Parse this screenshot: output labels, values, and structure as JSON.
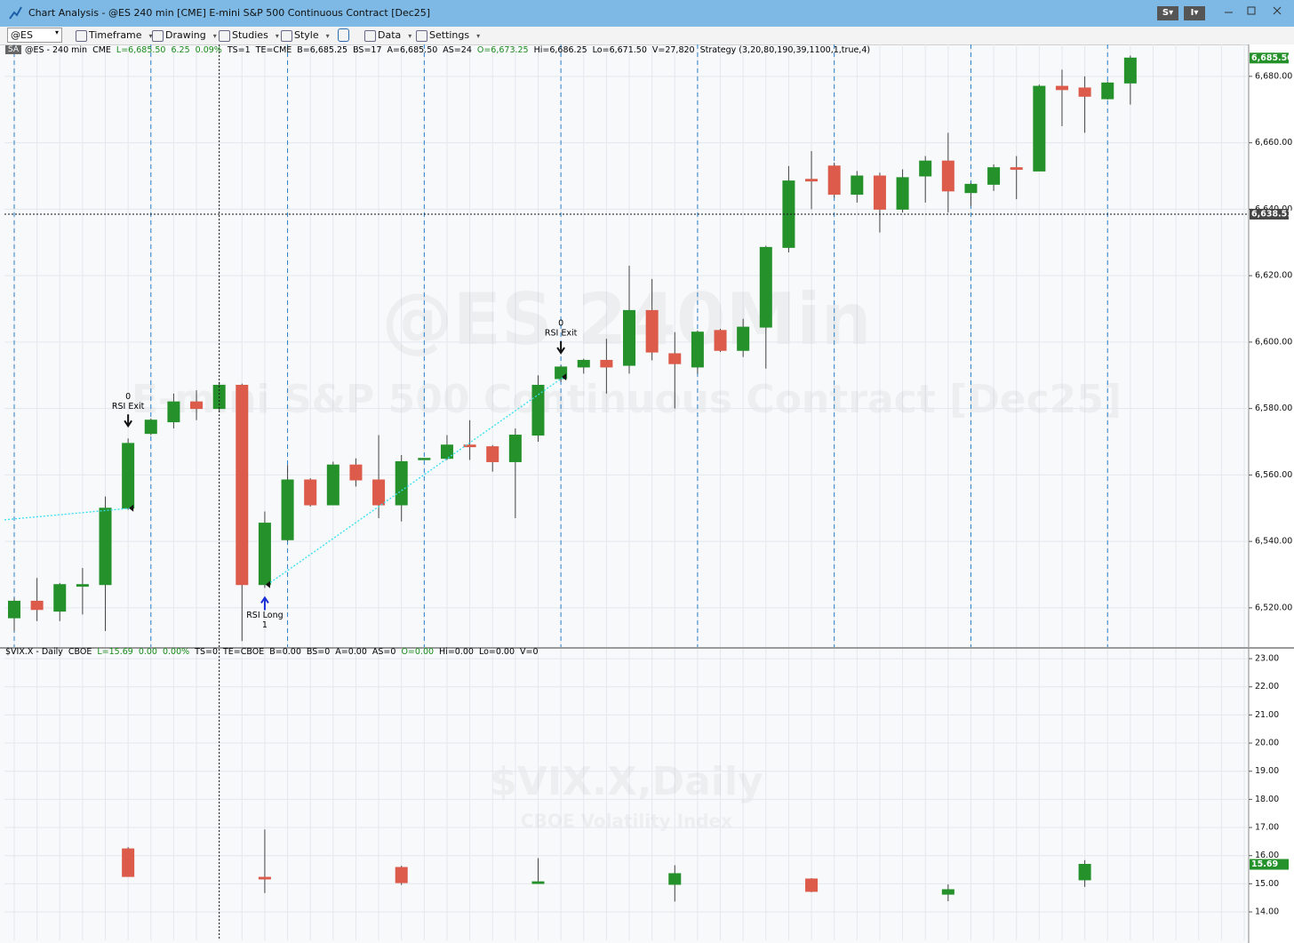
{
  "window": {
    "title": "Chart Analysis - @ES 240 min [CME] E-mini S&P 500 Continuous Contract [Dec25]",
    "buttons": [
      "S",
      "I"
    ]
  },
  "toolbar": {
    "symbol": "@ES",
    "items": [
      "Timeframe",
      "Drawing",
      "Studies",
      "Style",
      "Data",
      "Settings"
    ]
  },
  "chart_data": [
    {
      "type": "candlestick",
      "badge": "SA",
      "info": [
        {
          "text": "@ES - 240 min"
        },
        {
          "text": "CME"
        },
        {
          "text": "L=6,685.50",
          "color": "#1a8a1a"
        },
        {
          "text": "6.25",
          "color": "#1a8a1a"
        },
        {
          "text": "0.09%",
          "color": "#1a8a1a"
        },
        {
          "text": "TS=1"
        },
        {
          "text": "TE=CME"
        },
        {
          "text": "B=6,685.25"
        },
        {
          "text": "BS=17"
        },
        {
          "text": "A=6,685.50"
        },
        {
          "text": "AS=24"
        },
        {
          "text": "O=6,673.25",
          "color": "#1a8a1a"
        },
        {
          "text": "Hi=6,686.25"
        },
        {
          "text": "Lo=6,671.50"
        },
        {
          "text": "V=27,820"
        },
        {
          "text": "Strategy (3,20,80,190,39,1100,1,true,4)"
        }
      ],
      "watermark": "@ES 240Min",
      "watermark_subtitle": "E-mini S&P 500 Continuous Contract [Dec25]",
      "up_color": "#24912b",
      "down_color": "#dc5b4a",
      "open": [
        6517,
        6522,
        6519,
        6526.5,
        6527,
        6550,
        6572.5,
        6576,
        6582,
        6580,
        6587,
        6527,
        6540.5,
        6558.5,
        6551,
        6563,
        6558.5,
        6551,
        6564.75,
        6565,
        6569,
        6568.5,
        6564,
        6572,
        6589,
        6592.5,
        6594.5,
        6593,
        6609.5,
        6596.5,
        6592.5,
        6603.5,
        6597.5,
        6604.5,
        6628.5,
        6649,
        6653,
        6644.5,
        6650,
        6640,
        6650,
        6654.5,
        6645,
        6647.5,
        6652.5,
        6651.5,
        6677,
        6676.5,
        6673.25,
        6678
      ],
      "high": [
        6523,
        6529,
        6527.5,
        6532,
        6553.5,
        6571,
        6577,
        6584.5,
        6585.5,
        6588,
        6587.5,
        6549,
        6563,
        6559,
        6564,
        6565,
        6572,
        6566,
        6565,
        6572,
        6576.5,
        6569,
        6574,
        6590,
        6593,
        6595,
        6601,
        6623,
        6619,
        6603,
        6603.5,
        6604,
        6607,
        6629,
        6653,
        6657.5,
        6654,
        6651.5,
        6651,
        6652,
        6656,
        6663,
        6648,
        6653.5,
        6656,
        6677.5,
        6682,
        6680,
        6678.5,
        6686.25
      ],
      "low": [
        6513,
        6516,
        6516,
        6518,
        6513,
        6549.5,
        6572,
        6574,
        6576.5,
        6579,
        6510,
        6526,
        6540,
        6550.5,
        6551,
        6556.5,
        6547,
        6546,
        6564.5,
        6564.5,
        6564.5,
        6561,
        6547,
        6570,
        6588,
        6590.5,
        6584.5,
        6590.5,
        6594.5,
        6580,
        6590.5,
        6597,
        6595.5,
        6592,
        6627,
        6640,
        6643.5,
        6642,
        6633,
        6639,
        6642,
        6639,
        6641,
        6645.5,
        6643,
        6651.5,
        6665,
        6663,
        6673,
        6671.5
      ],
      "close": [
        6522,
        6519.5,
        6527,
        6527,
        6550,
        6569.5,
        6576.5,
        6582,
        6580,
        6587,
        6527,
        6545.5,
        6558.5,
        6551,
        6563,
        6558.5,
        6551,
        6564,
        6565,
        6569,
        6568.5,
        6564,
        6572,
        6587,
        6592.5,
        6594.5,
        6592.5,
        6609.5,
        6597,
        6593.5,
        6603,
        6597.5,
        6604.5,
        6628.5,
        6648.5,
        6648.5,
        6644.5,
        6650,
        6640,
        6649.5,
        6654.5,
        6645.5,
        6647.5,
        6652.5,
        6652,
        6677,
        6676,
        6674,
        6678,
        6685.5
      ],
      "ylim": [
        6508.2,
        6689.6
      ],
      "yticks": [
        {
          "value": 6520,
          "label": "6,520.00"
        },
        {
          "value": 6540,
          "label": "6,540.00"
        },
        {
          "value": 6560,
          "label": "6,560.00"
        },
        {
          "value": 6580,
          "label": "6,580.00"
        },
        {
          "value": 6600,
          "label": "6,600.00"
        },
        {
          "value": 6620,
          "label": "6,620.00"
        },
        {
          "value": 6640,
          "label": "6,640.00"
        },
        {
          "value": 6660,
          "label": "6,660.00"
        },
        {
          "value": 6680,
          "label": "6,680.00"
        }
      ],
      "grid": true,
      "last_price": {
        "value": 6685.5,
        "label": "6,685.50"
      },
      "crosshair": {
        "value": 6638.51,
        "label": "6,638.51"
      },
      "signals": [
        {
          "kind": "exit",
          "qty": 0,
          "label": "RSI Exit",
          "price": 6550
        },
        {
          "kind": "long",
          "qty": 1,
          "label": "RSI Long",
          "price": 6527
        },
        {
          "kind": "exit",
          "qty": 0,
          "label": "RSI Exit",
          "price": 6589.5
        }
      ],
      "trade_lines": [
        [
          6546.5,
          6550
        ],
        [
          6527,
          6589.5
        ]
      ]
    },
    {
      "type": "candlestick",
      "info": [
        {
          "text": "$VIX.X - Daily"
        },
        {
          "text": "CBOE"
        },
        {
          "text": "L=15.69",
          "color": "#1a8a1a"
        },
        {
          "text": "0.00",
          "color": "#1a8a1a"
        },
        {
          "text": "0.00%",
          "color": "#1a8a1a"
        },
        {
          "text": "TS=0"
        },
        {
          "text": "TE=CBOE"
        },
        {
          "text": "B=0.00"
        },
        {
          "text": "BS=0"
        },
        {
          "text": "A=0.00"
        },
        {
          "text": "AS=0"
        },
        {
          "text": "O=0.00",
          "color": "#1a8a1a"
        },
        {
          "text": "Hi=0.00"
        },
        {
          "text": "Lo=0.00"
        },
        {
          "text": "V=0"
        }
      ],
      "watermark": "$VIX.X,Daily",
      "watermark_subtitle": "CBOE Volatility Index",
      "up_color": "#24912b",
      "down_color": "#dc5b4a",
      "open": [
        16.24,
        15.23,
        15.58,
        15.01,
        14.98,
        15.17,
        14.63,
        15.14
      ],
      "high": [
        16.3,
        16.93,
        15.64,
        15.91,
        15.66,
        15.2,
        14.98,
        15.84
      ],
      "low": [
        15.26,
        14.67,
        14.96,
        15.0,
        14.37,
        14.7,
        14.38,
        14.89
      ],
      "close": [
        15.26,
        15.17,
        15.04,
        15.07,
        15.36,
        14.73,
        14.79,
        15.69
      ],
      "ylim": [
        12.99,
        23.35
      ],
      "yticks": [
        {
          "value": 14,
          "label": "14.00"
        },
        {
          "value": 15,
          "label": "15.00"
        },
        {
          "value": 16,
          "label": "16.00"
        },
        {
          "value": 17,
          "label": "17.00"
        },
        {
          "value": 18,
          "label": "18.00"
        },
        {
          "value": 19,
          "label": "19.00"
        },
        {
          "value": 20,
          "label": "20.00"
        },
        {
          "value": 21,
          "label": "21.00"
        },
        {
          "value": 22,
          "label": "22.00"
        },
        {
          "value": 23,
          "label": "23.00"
        }
      ],
      "grid": true,
      "last_price": {
        "value": 15.69,
        "label": "15.69"
      }
    }
  ]
}
